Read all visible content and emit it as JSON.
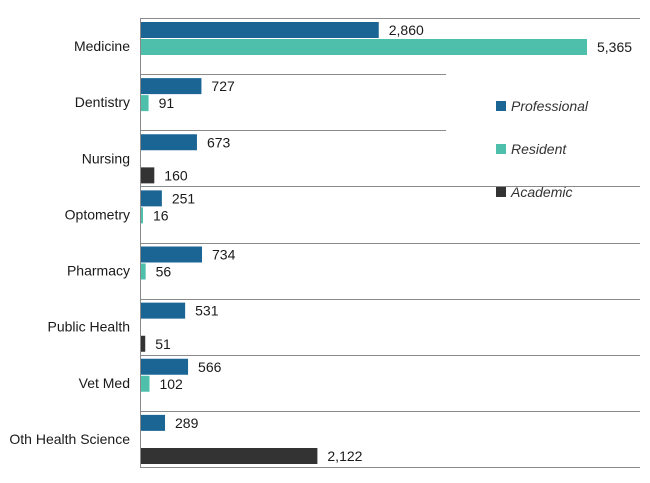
{
  "chart_data": {
    "type": "bar",
    "orientation": "horizontal",
    "title": "",
    "xlabel": "",
    "ylabel": "",
    "xlim": [
      0,
      5600
    ],
    "grid": false,
    "legend_position": "right",
    "categories": [
      "Medicine",
      "Dentistry",
      "Nursing",
      "Optometry",
      "Pharmacy",
      "Public Health",
      "Vet Med",
      "Oth Health Science"
    ],
    "series": [
      {
        "name": "Professional",
        "color": "#1b6595",
        "values": [
          2860,
          727,
          673,
          251,
          734,
          531,
          566,
          289
        ],
        "labels": [
          "2,860",
          "727",
          "673",
          "251",
          "734",
          "531",
          "566",
          "289"
        ]
      },
      {
        "name": "Resident",
        "color": "#4dbfaa",
        "values": [
          5365,
          91,
          null,
          16,
          56,
          null,
          102,
          null
        ],
        "labels": [
          "5,365",
          "91",
          null,
          "16",
          "56",
          null,
          "102",
          null
        ]
      },
      {
        "name": "Academic",
        "color": "#333333",
        "values": [
          null,
          null,
          160,
          null,
          null,
          51,
          null,
          2122
        ],
        "labels": [
          null,
          null,
          "160",
          null,
          null,
          "51",
          null,
          "2,122"
        ]
      }
    ]
  }
}
